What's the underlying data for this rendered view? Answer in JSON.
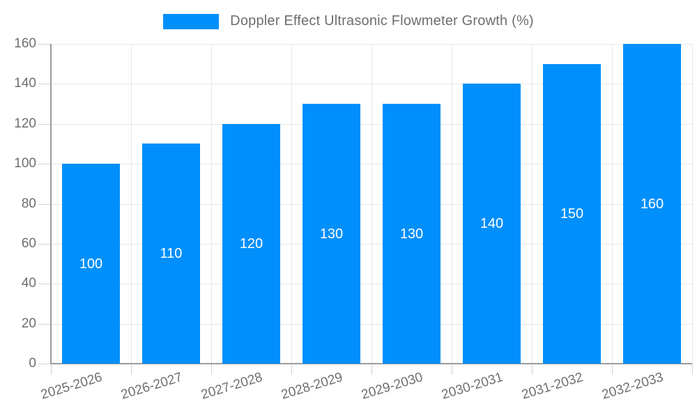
{
  "chart_data": {
    "type": "bar",
    "title": "Doppler Effect Ultrasonic Flowmeter Growth (%)",
    "categories": [
      "2025-2026",
      "2026-2027",
      "2027-2028",
      "2028-2029",
      "2029-2030",
      "2030-2031",
      "2031-2032",
      "2032-2033"
    ],
    "values": [
      100,
      110,
      120,
      130,
      130,
      140,
      150,
      160
    ],
    "value_labels": [
      "100",
      "110",
      "120",
      "130",
      "130",
      "140",
      "150",
      "160"
    ],
    "xlabel": "",
    "ylabel": "",
    "ylim": [
      0,
      160
    ],
    "y_ticks": [
      0,
      20,
      40,
      60,
      80,
      100,
      120,
      140,
      160
    ],
    "y_tick_labels": [
      "0",
      "20",
      "40",
      "60",
      "80",
      "100",
      "120",
      "140",
      "160"
    ],
    "grid": true,
    "legend_position": "top",
    "colors": {
      "bar": "#008FFB",
      "axis_text": "#6e6e6e",
      "grid_line": "#e7e7e7",
      "tick_line": "#d2d2d2",
      "axis_line": "#9b9b9b",
      "value_label": "#ffffff",
      "background": "#ffffff"
    }
  }
}
